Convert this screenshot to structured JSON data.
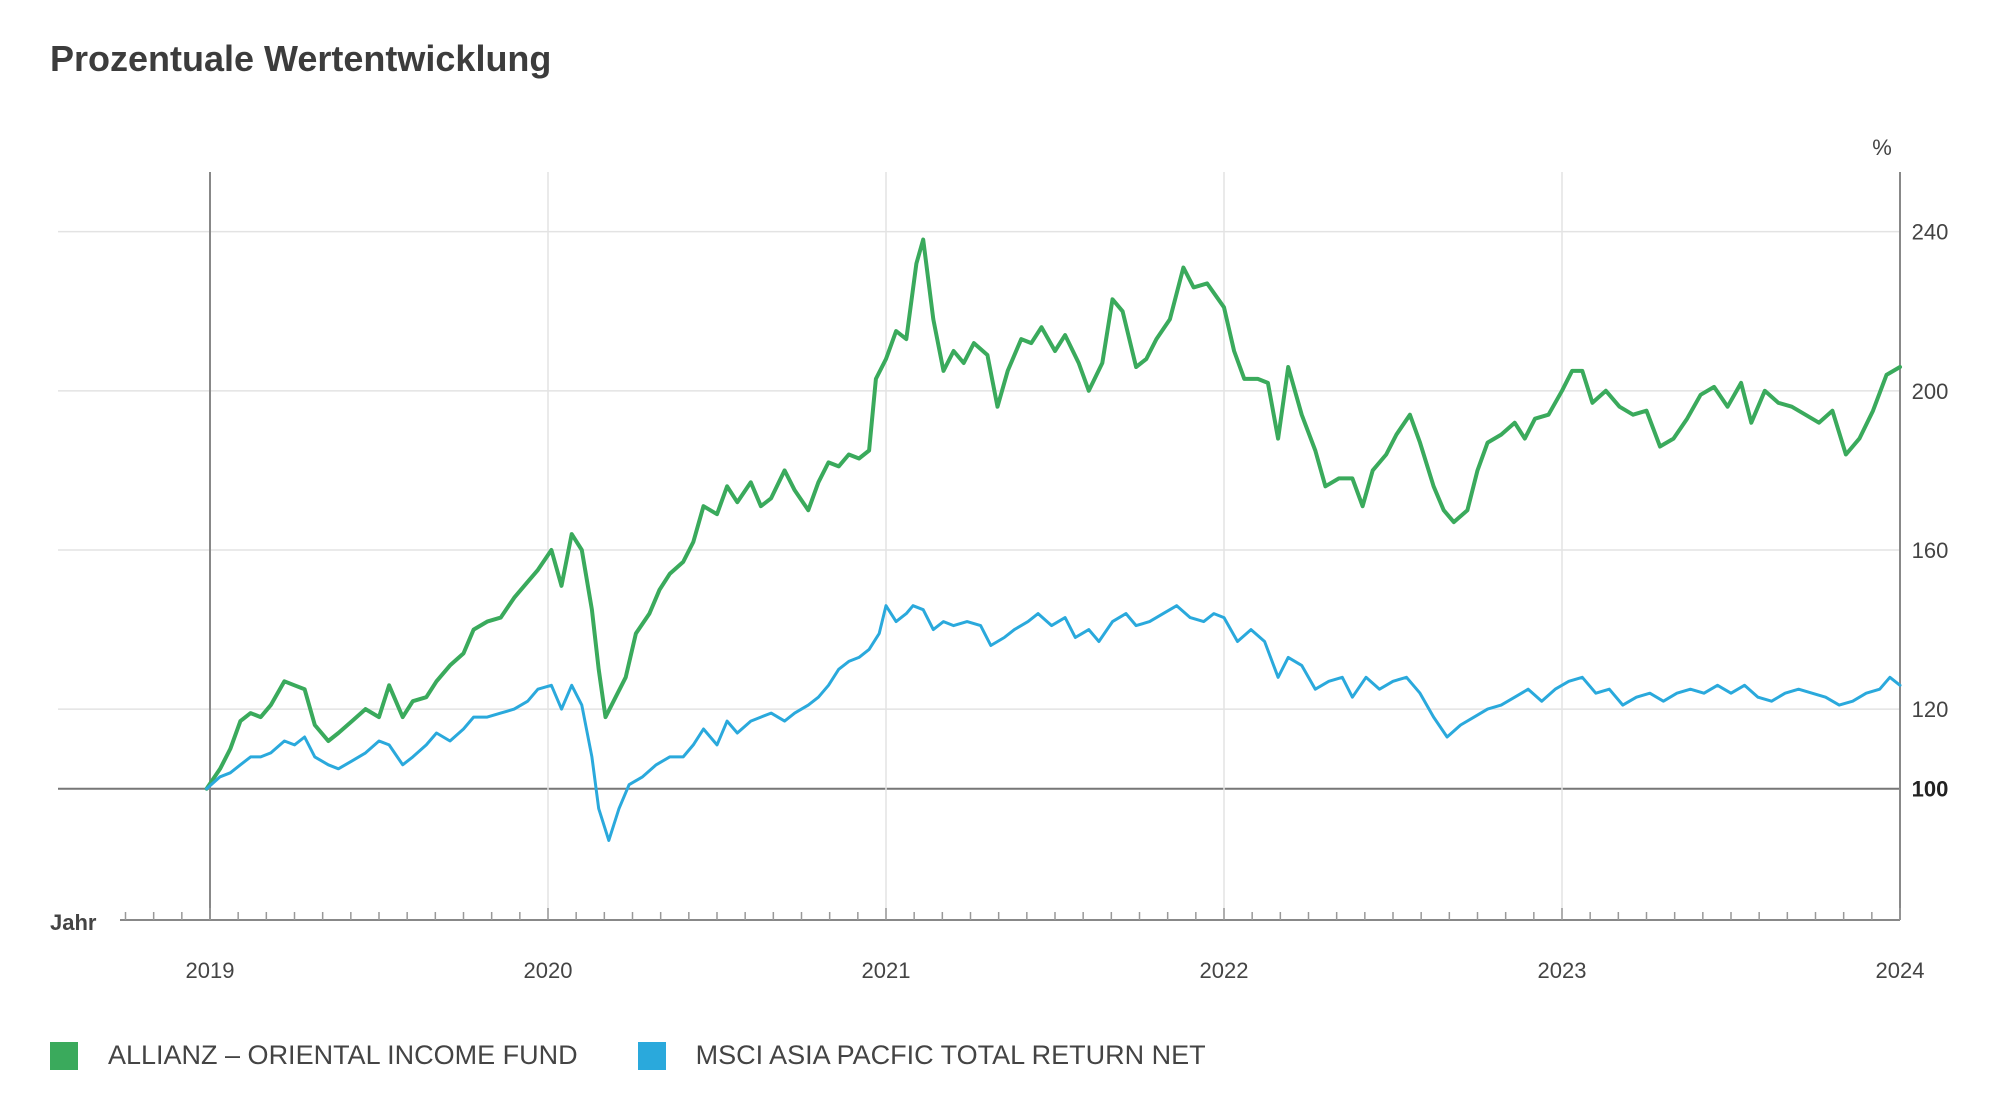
{
  "chart_data": {
    "type": "line",
    "title": "Prozentuale Wertentwicklung",
    "ylabel": "%",
    "xlabel": "Jahr",
    "ylim": [
      67,
      255
    ],
    "xlim": [
      2018.55,
      2024.0
    ],
    "y_ticks": [
      {
        "value": 120,
        "label": "120",
        "bold": false
      },
      {
        "value": 160,
        "label": "160",
        "bold": false
      },
      {
        "value": 200,
        "label": "200",
        "bold": false
      },
      {
        "value": 240,
        "label": "240",
        "bold": false
      },
      {
        "value": 100,
        "label": "100",
        "bold": true
      }
    ],
    "x_ticks": [
      {
        "value": 2019,
        "label": "2019"
      },
      {
        "value": 2020,
        "label": "2020"
      },
      {
        "value": 2021,
        "label": "2021"
      },
      {
        "value": 2022,
        "label": "2022"
      },
      {
        "value": 2023,
        "label": "2023"
      },
      {
        "value": 2024,
        "label": "2024"
      }
    ],
    "grid": true,
    "legend_position": "bottom-left",
    "series": [
      {
        "name": "ALLIANZ – ORIENTAL INCOME FUND",
        "color": "#3aaa5c",
        "points": [
          [
            2018.99,
            100
          ],
          [
            2019.03,
            105
          ],
          [
            2019.06,
            110
          ],
          [
            2019.09,
            117
          ],
          [
            2019.12,
            119
          ],
          [
            2019.15,
            118
          ],
          [
            2019.18,
            121
          ],
          [
            2019.22,
            127
          ],
          [
            2019.25,
            126
          ],
          [
            2019.28,
            125
          ],
          [
            2019.31,
            116
          ],
          [
            2019.35,
            112
          ],
          [
            2019.38,
            114
          ],
          [
            2019.42,
            117
          ],
          [
            2019.46,
            120
          ],
          [
            2019.5,
            118
          ],
          [
            2019.53,
            126
          ],
          [
            2019.57,
            118
          ],
          [
            2019.6,
            122
          ],
          [
            2019.64,
            123
          ],
          [
            2019.67,
            127
          ],
          [
            2019.71,
            131
          ],
          [
            2019.75,
            134
          ],
          [
            2019.78,
            140
          ],
          [
            2019.82,
            142
          ],
          [
            2019.86,
            143
          ],
          [
            2019.9,
            148
          ],
          [
            2019.94,
            152
          ],
          [
            2019.97,
            155
          ],
          [
            2020.01,
            160
          ],
          [
            2020.04,
            151
          ],
          [
            2020.07,
            164
          ],
          [
            2020.1,
            160
          ],
          [
            2020.13,
            145
          ],
          [
            2020.15,
            130
          ],
          [
            2020.17,
            118
          ],
          [
            2020.2,
            123
          ],
          [
            2020.23,
            128
          ],
          [
            2020.26,
            139
          ],
          [
            2020.3,
            144
          ],
          [
            2020.33,
            150
          ],
          [
            2020.36,
            154
          ],
          [
            2020.4,
            157
          ],
          [
            2020.43,
            162
          ],
          [
            2020.46,
            171
          ],
          [
            2020.5,
            169
          ],
          [
            2020.53,
            176
          ],
          [
            2020.56,
            172
          ],
          [
            2020.6,
            177
          ],
          [
            2020.63,
            171
          ],
          [
            2020.66,
            173
          ],
          [
            2020.7,
            180
          ],
          [
            2020.73,
            175
          ],
          [
            2020.77,
            170
          ],
          [
            2020.8,
            177
          ],
          [
            2020.83,
            182
          ],
          [
            2020.86,
            181
          ],
          [
            2020.89,
            184
          ],
          [
            2020.92,
            183
          ],
          [
            2020.95,
            185
          ],
          [
            2020.97,
            203
          ],
          [
            2021.0,
            208
          ],
          [
            2021.03,
            215
          ],
          [
            2021.06,
            213
          ],
          [
            2021.09,
            232
          ],
          [
            2021.11,
            238
          ],
          [
            2021.14,
            218
          ],
          [
            2021.17,
            205
          ],
          [
            2021.2,
            210
          ],
          [
            2021.23,
            207
          ],
          [
            2021.26,
            212
          ],
          [
            2021.3,
            209
          ],
          [
            2021.33,
            196
          ],
          [
            2021.36,
            205
          ],
          [
            2021.4,
            213
          ],
          [
            2021.43,
            212
          ],
          [
            2021.46,
            216
          ],
          [
            2021.5,
            210
          ],
          [
            2021.53,
            214
          ],
          [
            2021.57,
            207
          ],
          [
            2021.6,
            200
          ],
          [
            2021.64,
            207
          ],
          [
            2021.67,
            223
          ],
          [
            2021.7,
            220
          ],
          [
            2021.74,
            206
          ],
          [
            2021.77,
            208
          ],
          [
            2021.8,
            213
          ],
          [
            2021.84,
            218
          ],
          [
            2021.88,
            231
          ],
          [
            2021.91,
            226
          ],
          [
            2021.95,
            227
          ],
          [
            2022.0,
            221
          ],
          [
            2022.03,
            210
          ],
          [
            2022.06,
            203
          ],
          [
            2022.1,
            203
          ],
          [
            2022.13,
            202
          ],
          [
            2022.16,
            188
          ],
          [
            2022.19,
            206
          ],
          [
            2022.23,
            194
          ],
          [
            2022.27,
            185
          ],
          [
            2022.3,
            176
          ],
          [
            2022.34,
            178
          ],
          [
            2022.38,
            178
          ],
          [
            2022.41,
            171
          ],
          [
            2022.44,
            180
          ],
          [
            2022.48,
            184
          ],
          [
            2022.51,
            189
          ],
          [
            2022.55,
            194
          ],
          [
            2022.58,
            187
          ],
          [
            2022.62,
            176
          ],
          [
            2022.65,
            170
          ],
          [
            2022.68,
            167
          ],
          [
            2022.72,
            170
          ],
          [
            2022.75,
            180
          ],
          [
            2022.78,
            187
          ],
          [
            2022.82,
            189
          ],
          [
            2022.86,
            192
          ],
          [
            2022.89,
            188
          ],
          [
            2022.92,
            193
          ],
          [
            2022.96,
            194
          ],
          [
            2023.0,
            200
          ],
          [
            2023.03,
            205
          ],
          [
            2023.06,
            205
          ],
          [
            2023.09,
            197
          ],
          [
            2023.13,
            200
          ],
          [
            2023.17,
            196
          ],
          [
            2023.21,
            194
          ],
          [
            2023.25,
            195
          ],
          [
            2023.29,
            186
          ],
          [
            2023.33,
            188
          ],
          [
            2023.37,
            193
          ],
          [
            2023.41,
            199
          ],
          [
            2023.45,
            201
          ],
          [
            2023.49,
            196
          ],
          [
            2023.53,
            202
          ],
          [
            2023.56,
            192
          ],
          [
            2023.6,
            200
          ],
          [
            2023.64,
            197
          ],
          [
            2023.68,
            196
          ],
          [
            2023.72,
            194
          ],
          [
            2023.76,
            192
          ],
          [
            2023.8,
            195
          ],
          [
            2023.84,
            184
          ],
          [
            2023.88,
            188
          ],
          [
            2023.92,
            195
          ],
          [
            2023.96,
            204
          ],
          [
            2024.0,
            206
          ]
        ]
      },
      {
        "name": "MSCI ASIA PACFIC TOTAL RETURN NET",
        "color": "#2aa9dc",
        "points": [
          [
            2018.99,
            100
          ],
          [
            2019.03,
            103
          ],
          [
            2019.06,
            104
          ],
          [
            2019.09,
            106
          ],
          [
            2019.12,
            108
          ],
          [
            2019.15,
            108
          ],
          [
            2019.18,
            109
          ],
          [
            2019.22,
            112
          ],
          [
            2019.25,
            111
          ],
          [
            2019.28,
            113
          ],
          [
            2019.31,
            108
          ],
          [
            2019.35,
            106
          ],
          [
            2019.38,
            105
          ],
          [
            2019.42,
            107
          ],
          [
            2019.46,
            109
          ],
          [
            2019.5,
            112
          ],
          [
            2019.53,
            111
          ],
          [
            2019.57,
            106
          ],
          [
            2019.6,
            108
          ],
          [
            2019.64,
            111
          ],
          [
            2019.67,
            114
          ],
          [
            2019.71,
            112
          ],
          [
            2019.75,
            115
          ],
          [
            2019.78,
            118
          ],
          [
            2019.82,
            118
          ],
          [
            2019.86,
            119
          ],
          [
            2019.9,
            120
          ],
          [
            2019.94,
            122
          ],
          [
            2019.97,
            125
          ],
          [
            2020.01,
            126
          ],
          [
            2020.04,
            120
          ],
          [
            2020.07,
            126
          ],
          [
            2020.1,
            121
          ],
          [
            2020.13,
            108
          ],
          [
            2020.15,
            95
          ],
          [
            2020.18,
            87
          ],
          [
            2020.21,
            95
          ],
          [
            2020.24,
            101
          ],
          [
            2020.28,
            103
          ],
          [
            2020.32,
            106
          ],
          [
            2020.36,
            108
          ],
          [
            2020.4,
            108
          ],
          [
            2020.43,
            111
          ],
          [
            2020.46,
            115
          ],
          [
            2020.5,
            111
          ],
          [
            2020.53,
            117
          ],
          [
            2020.56,
            114
          ],
          [
            2020.6,
            117
          ],
          [
            2020.63,
            118
          ],
          [
            2020.66,
            119
          ],
          [
            2020.7,
            117
          ],
          [
            2020.73,
            119
          ],
          [
            2020.77,
            121
          ],
          [
            2020.8,
            123
          ],
          [
            2020.83,
            126
          ],
          [
            2020.86,
            130
          ],
          [
            2020.89,
            132
          ],
          [
            2020.92,
            133
          ],
          [
            2020.95,
            135
          ],
          [
            2020.98,
            139
          ],
          [
            2021.0,
            146
          ],
          [
            2021.03,
            142
          ],
          [
            2021.06,
            144
          ],
          [
            2021.08,
            146
          ],
          [
            2021.11,
            145
          ],
          [
            2021.14,
            140
          ],
          [
            2021.17,
            142
          ],
          [
            2021.2,
            141
          ],
          [
            2021.24,
            142
          ],
          [
            2021.28,
            141
          ],
          [
            2021.31,
            136
          ],
          [
            2021.35,
            138
          ],
          [
            2021.38,
            140
          ],
          [
            2021.42,
            142
          ],
          [
            2021.45,
            144
          ],
          [
            2021.49,
            141
          ],
          [
            2021.53,
            143
          ],
          [
            2021.56,
            138
          ],
          [
            2021.6,
            140
          ],
          [
            2021.63,
            137
          ],
          [
            2021.67,
            142
          ],
          [
            2021.71,
            144
          ],
          [
            2021.74,
            141
          ],
          [
            2021.78,
            142
          ],
          [
            2021.82,
            144
          ],
          [
            2021.86,
            146
          ],
          [
            2021.9,
            143
          ],
          [
            2021.94,
            142
          ],
          [
            2021.97,
            144
          ],
          [
            2022.0,
            143
          ],
          [
            2022.04,
            137
          ],
          [
            2022.08,
            140
          ],
          [
            2022.12,
            137
          ],
          [
            2022.16,
            128
          ],
          [
            2022.19,
            133
          ],
          [
            2022.23,
            131
          ],
          [
            2022.27,
            125
          ],
          [
            2022.31,
            127
          ],
          [
            2022.35,
            128
          ],
          [
            2022.38,
            123
          ],
          [
            2022.42,
            128
          ],
          [
            2022.46,
            125
          ],
          [
            2022.5,
            127
          ],
          [
            2022.54,
            128
          ],
          [
            2022.58,
            124
          ],
          [
            2022.62,
            118
          ],
          [
            2022.66,
            113
          ],
          [
            2022.7,
            116
          ],
          [
            2022.74,
            118
          ],
          [
            2022.78,
            120
          ],
          [
            2022.82,
            121
          ],
          [
            2022.86,
            123
          ],
          [
            2022.9,
            125
          ],
          [
            2022.94,
            122
          ],
          [
            2022.98,
            125
          ],
          [
            2023.02,
            127
          ],
          [
            2023.06,
            128
          ],
          [
            2023.1,
            124
          ],
          [
            2023.14,
            125
          ],
          [
            2023.18,
            121
          ],
          [
            2023.22,
            123
          ],
          [
            2023.26,
            124
          ],
          [
            2023.3,
            122
          ],
          [
            2023.34,
            124
          ],
          [
            2023.38,
            125
          ],
          [
            2023.42,
            124
          ],
          [
            2023.46,
            126
          ],
          [
            2023.5,
            124
          ],
          [
            2023.54,
            126
          ],
          [
            2023.58,
            123
          ],
          [
            2023.62,
            122
          ],
          [
            2023.66,
            124
          ],
          [
            2023.7,
            125
          ],
          [
            2023.74,
            124
          ],
          [
            2023.78,
            123
          ],
          [
            2023.82,
            121
          ],
          [
            2023.86,
            122
          ],
          [
            2023.9,
            124
          ],
          [
            2023.94,
            125
          ],
          [
            2023.97,
            128
          ],
          [
            2024.0,
            126
          ]
        ]
      }
    ]
  }
}
